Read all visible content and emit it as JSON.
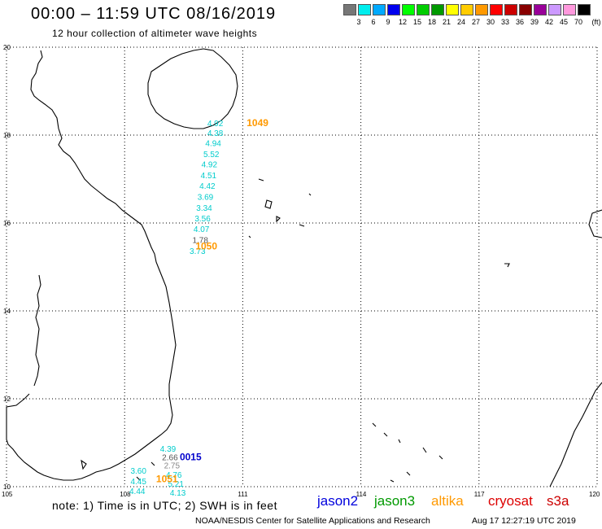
{
  "header": {
    "title": "00:00 – 11:59 UTC 08/16/2019",
    "subtitle": "12 hour collection of altimeter wave heights"
  },
  "color_scale": {
    "unit": "(ft)",
    "swatches": [
      {
        "label": "3",
        "color": "#777777"
      },
      {
        "label": "6",
        "color": "#00eeee"
      },
      {
        "label": "9",
        "color": "#00aaff"
      },
      {
        "label": "12",
        "color": "#0000ee"
      },
      {
        "label": "15",
        "color": "#00ff00"
      },
      {
        "label": "18",
        "color": "#00cc00"
      },
      {
        "label": "21",
        "color": "#009900"
      },
      {
        "label": "24",
        "color": "#ffff00"
      },
      {
        "label": "27",
        "color": "#ffcc00"
      },
      {
        "label": "30",
        "color": "#ff9900"
      },
      {
        "label": "33",
        "color": "#ff0000"
      },
      {
        "label": "36",
        "color": "#cc0000"
      },
      {
        "label": "39",
        "color": "#880000"
      },
      {
        "label": "42",
        "color": "#990099"
      },
      {
        "label": "45",
        "color": "#cc99ff"
      },
      {
        "label": "70",
        "color": "#ff99dd"
      },
      {
        "label": "",
        "color": "#000000"
      }
    ]
  },
  "axes": {
    "lat_labels": [
      "20",
      "18",
      "16",
      "14",
      "12",
      "10"
    ],
    "lon_labels": [
      "105",
      "108",
      "111",
      "114",
      "117",
      "120"
    ]
  },
  "passes": [
    {
      "time": "1049",
      "color": "#ff9900",
      "lat": 18.2,
      "lon": 111.1
    },
    {
      "time": "1050",
      "color": "#ff9900",
      "lat": 15.4,
      "lon": 109.8
    },
    {
      "time": "0015",
      "color": "#0000cc",
      "lat": 10.6,
      "lon": 109.4
    },
    {
      "time": "1051",
      "color": "#ff9900",
      "lat": 10.1,
      "lon": 108.8
    }
  ],
  "wave_heights": [
    {
      "value": "4.92",
      "color": "#00cccc",
      "lat": 18.2,
      "lon": 110.1
    },
    {
      "value": "4.38",
      "color": "#00cccc",
      "lat": 17.98,
      "lon": 110.1
    },
    {
      "value": "4.94",
      "color": "#00cccc",
      "lat": 17.75,
      "lon": 110.05
    },
    {
      "value": "5.52",
      "color": "#00cccc",
      "lat": 17.5,
      "lon": 110.0
    },
    {
      "value": "4.92",
      "color": "#00cccc",
      "lat": 17.27,
      "lon": 109.95
    },
    {
      "value": "4.51",
      "color": "#00cccc",
      "lat": 17.02,
      "lon": 109.93
    },
    {
      "value": "4.42",
      "color": "#00cccc",
      "lat": 16.78,
      "lon": 109.9
    },
    {
      "value": "3.69",
      "color": "#00cccc",
      "lat": 16.53,
      "lon": 109.85
    },
    {
      "value": "3.34",
      "color": "#00cccc",
      "lat": 16.28,
      "lon": 109.82
    },
    {
      "value": "3.56",
      "color": "#00cccc",
      "lat": 16.04,
      "lon": 109.78
    },
    {
      "value": "4.07",
      "color": "#00cccc",
      "lat": 15.8,
      "lon": 109.75
    },
    {
      "value": "1.78",
      "color": "#555555",
      "lat": 15.55,
      "lon": 109.72
    },
    {
      "value": "3.73",
      "color": "#00cccc",
      "lat": 15.3,
      "lon": 109.65
    },
    {
      "value": "4.39",
      "color": "#00cccc",
      "lat": 10.8,
      "lon": 108.9
    },
    {
      "value": "2.66",
      "color": "#555555",
      "lat": 10.6,
      "lon": 108.95
    },
    {
      "value": "2.75",
      "color": "#888888",
      "lat": 10.42,
      "lon": 109.0
    },
    {
      "value": "3.60",
      "color": "#00cccc",
      "lat": 10.3,
      "lon": 108.15
    },
    {
      "value": "4.76",
      "color": "#00cccc",
      "lat": 10.2,
      "lon": 109.05
    },
    {
      "value": "4.45",
      "color": "#00cccc",
      "lat": 10.06,
      "lon": 108.15
    },
    {
      "value": "5.21",
      "color": "#00cccc",
      "lat": 10.0,
      "lon": 109.1
    },
    {
      "value": "4.44",
      "color": "#00cccc",
      "lat": 9.83,
      "lon": 108.12
    },
    {
      "value": "4.13",
      "color": "#00cccc",
      "lat": 9.8,
      "lon": 109.15
    }
  ],
  "footer": {
    "note": "note:  1) Time is in UTC;  2) SWH is in feet",
    "satellites": [
      {
        "name": "jason2",
        "color": "#0000dd"
      },
      {
        "name": "jason3",
        "color": "#009900"
      },
      {
        "name": "altika",
        "color": "#ff9900"
      },
      {
        "name": "cryosat",
        "color": "#dd0000"
      },
      {
        "name": "s3a",
        "color": "#cc0000"
      }
    ],
    "credit": "NOAA/NESDIS Center for Satellite Applications and Research",
    "timestamp": "Aug 17 12:27:19 UTC 2019"
  }
}
